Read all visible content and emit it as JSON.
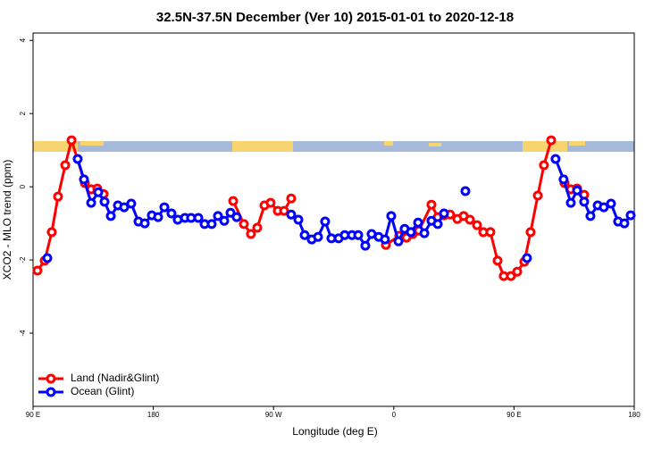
{
  "chart_data": {
    "type": "line",
    "title": "32.5N-37.5N December (Ver 10)   2015-01-01 to 2020-12-18",
    "x_label": "Longitude (deg E)",
    "y_label": "XCO2 - MLO trend (ppm)",
    "xlim": [
      90,
      540
    ],
    "ylim": [
      -6,
      4.2
    ],
    "xticks": [
      {
        "value": 90,
        "label": "90 E"
      },
      180,
      {
        "value": 270,
        "label": "90 W"
      },
      {
        "value": 360,
        "label": "0"
      },
      {
        "value": 450,
        "label": "90 E"
      },
      {
        "value": 540,
        "label": "180"
      }
    ],
    "yticks": [
      4,
      2,
      0,
      -2,
      -4
    ],
    "legend": "bottom left",
    "series": [
      {
        "name": "Land (Nadir&Glint)",
        "color": "#ff0000",
        "x": [
          93.3,
          98.7,
          104.0,
          108.7,
          114.1,
          118.8,
          128.8,
          133.5,
          138.1,
          142.8,
          null,
          239.8,
          247.8,
          253.1,
          257.8,
          263.2,
          267.8,
          273.2,
          277.9,
          283.2,
          null,
          354.1,
          364.1,
          369.5,
          374.2,
          378.8,
          388.2,
          392.9,
          397.6,
          402.2,
          407.6,
          412.3,
          417.0,
          422.3,
          427.0,
          432.3,
          437.7,
          442.3,
          447.7,
          452.4,
          457.7,
          462.4,
          467.8,
          472.4,
          477.8,
          null,
          487.8,
          492.5,
          497.2,
          502.5
        ],
        "values": [
          -2.29,
          -2.02,
          -1.24,
          -0.27,
          0.59,
          1.27,
          0.1,
          -0.07,
          -0.05,
          -0.2,
          null,
          -0.39,
          -1.02,
          -1.29,
          -1.12,
          -0.51,
          -0.44,
          -0.66,
          -0.66,
          -0.32,
          null,
          -1.59,
          -1.34,
          -1.39,
          -1.29,
          -1.2,
          -0.49,
          -0.83,
          -0.78,
          -0.76,
          -0.88,
          -0.8,
          -0.9,
          -1.05,
          -1.24,
          -1.24,
          -2.02,
          -2.44,
          -2.44,
          -2.32,
          -2.05,
          -1.24,
          -0.24,
          0.59,
          1.27,
          null,
          0.1,
          -0.07,
          -0.05,
          -0.22
        ]
      },
      {
        "name": "Ocean (Glint)",
        "color": "#0000ff",
        "x": [
          100.7,
          null,
          123.4,
          128.1,
          133.5,
          138.8,
          143.5,
          148.2,
          153.5,
          158.2,
          163.5,
          168.9,
          173.6,
          178.9,
          183.6,
          188.3,
          193.6,
          198.3,
          203.7,
          208.3,
          213.7,
          218.4,
          223.7,
          228.4,
          233.1,
          237.8,
          242.4,
          null,
          283.2,
          288.6,
          293.3,
          298.6,
          303.3,
          308.6,
          313.3,
          318.7,
          323.3,
          328.7,
          333.4,
          338.7,
          343.4,
          348.7,
          353.4,
          358.1,
          363.5,
          368.1,
          372.8,
          378.2,
          382.9,
          388.2,
          392.9,
          397.6,
          null,
          413.6,
          null,
          459.7,
          null,
          481.1,
          487.1,
          492.5,
          497.2,
          502.5,
          507.2,
          512.6,
          517.2,
          522.6,
          527.9,
          532.6,
          537.3
        ],
        "values": [
          -1.95,
          null,
          0.76,
          0.2,
          -0.44,
          -0.15,
          -0.41,
          -0.8,
          -0.51,
          -0.56,
          -0.46,
          -0.95,
          -1.0,
          -0.78,
          -0.83,
          -0.56,
          -0.73,
          -0.9,
          -0.85,
          -0.85,
          -0.85,
          -1.02,
          -1.02,
          -0.8,
          -0.93,
          -0.71,
          -0.83,
          null,
          -0.76,
          -0.9,
          -1.32,
          -1.44,
          -1.37,
          -0.95,
          -1.41,
          -1.41,
          -1.32,
          -1.32,
          -1.32,
          -1.61,
          -1.29,
          -1.37,
          -1.44,
          -0.8,
          -1.49,
          -1.15,
          -1.24,
          -0.98,
          -1.27,
          -0.93,
          -1.02,
          -0.73,
          null,
          -0.12,
          null,
          -1.95,
          null,
          0.76,
          0.2,
          -0.44,
          -0.1,
          -0.41,
          -0.8,
          -0.51,
          -0.56,
          -0.46,
          -0.95,
          -1.0,
          -0.78
        ]
      }
    ]
  }
}
